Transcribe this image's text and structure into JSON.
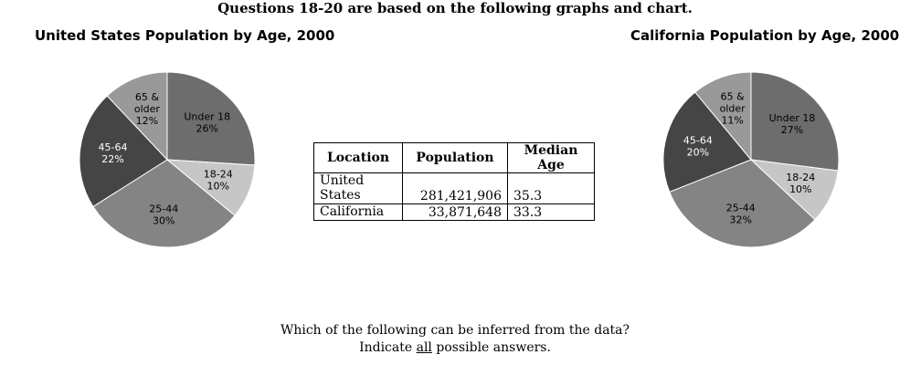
{
  "header": "Questions 18-20 are based on the following graphs and chart.",
  "chart_data": [
    {
      "type": "pie",
      "title": "United States Population by Age, 2000",
      "slices": [
        {
          "label": [
            "Under 18",
            "26%"
          ],
          "value": 26,
          "color": "#6d6d6d",
          "label_color": "#000000"
        },
        {
          "label": [
            "18-24",
            "10%"
          ],
          "value": 10,
          "color": "#c6c6c6",
          "label_color": "#000000"
        },
        {
          "label": [
            "25-44",
            "30%"
          ],
          "value": 30,
          "color": "#848484",
          "label_color": "#000000"
        },
        {
          "label": [
            "45-64",
            "22%"
          ],
          "value": 22,
          "color": "#454545",
          "label_color": "#ffffff"
        },
        {
          "label": [
            "65 &",
            "older",
            "12%"
          ],
          "value": 12,
          "color": "#999999",
          "label_color": "#000000"
        }
      ]
    },
    {
      "type": "pie",
      "title": "California Population by Age, 2000",
      "slices": [
        {
          "label": [
            "Under 18",
            "27%"
          ],
          "value": 27,
          "color": "#6d6d6d",
          "label_color": "#000000"
        },
        {
          "label": [
            "18-24",
            "10%"
          ],
          "value": 10,
          "color": "#c6c6c6",
          "label_color": "#000000"
        },
        {
          "label": [
            "25-44",
            "32%"
          ],
          "value": 32,
          "color": "#848484",
          "label_color": "#000000"
        },
        {
          "label": [
            "45-64",
            "20%"
          ],
          "value": 20,
          "color": "#454545",
          "label_color": "#ffffff"
        },
        {
          "label": [
            "65 &",
            "older",
            "11%"
          ],
          "value": 11,
          "color": "#999999",
          "label_color": "#000000"
        }
      ]
    },
    {
      "type": "table",
      "columns": [
        "Location",
        "Population",
        "Median Age"
      ],
      "rows": [
        {
          "location": [
            "United",
            "States"
          ],
          "population": "281,421,906",
          "median_age": "35.3"
        },
        {
          "location": [
            "California"
          ],
          "population": "33,871,648",
          "median_age": "33.3"
        }
      ]
    }
  ],
  "question": {
    "line1": "Which of the following can be inferred from the data?",
    "line2_pre": "Indicate ",
    "line2_emph": "all",
    "line2_post": " possible answers."
  }
}
